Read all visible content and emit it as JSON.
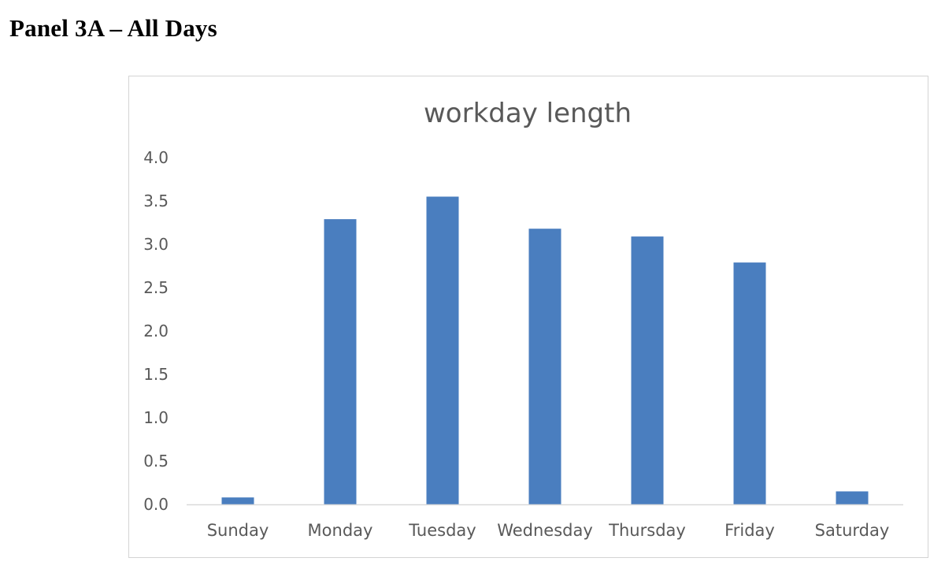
{
  "page": {
    "heading": "Panel 3A – All Days"
  },
  "chart_data": {
    "type": "bar",
    "title": "workday length",
    "xlabel": "",
    "ylabel": "",
    "categories": [
      "Sunday",
      "Monday",
      "Tuesday",
      "Wednesday",
      "Thursday",
      "Friday",
      "Saturday"
    ],
    "values": [
      0.08,
      3.29,
      3.55,
      3.18,
      3.09,
      2.79,
      0.15
    ],
    "ylim": [
      0,
      4.0
    ],
    "yticks": [
      "0.0",
      "0.5",
      "1.0",
      "1.5",
      "2.0",
      "2.5",
      "3.0",
      "3.5",
      "4.0"
    ],
    "grid": false,
    "legend": "none",
    "bar_color": "#4a7ebf"
  }
}
